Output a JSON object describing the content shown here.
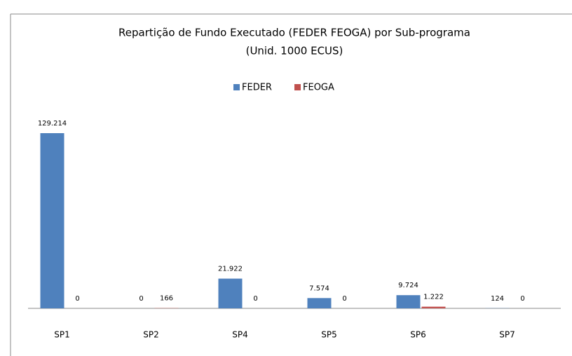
{
  "chart_data": {
    "type": "bar",
    "title": "Repartição de Fundo Executado (FEDER FEOGA) por Sub-programa",
    "subtitle": "(Unid. 1000 ECUS)",
    "categories": [
      "SP1",
      "SP2",
      "SP4",
      "SP5",
      "SP6",
      "SP7"
    ],
    "series": [
      {
        "name": "FEDER",
        "color": "#4f81bd",
        "values": [
          129214,
          0,
          21922,
          7574,
          9724,
          124
        ],
        "value_labels": [
          "129.214",
          "0",
          "21.922",
          "7.574",
          "9.724",
          "124"
        ]
      },
      {
        "name": "FEOGA",
        "color": "#c0504d",
        "values": [
          0,
          166,
          0,
          0,
          1222,
          0
        ],
        "value_labels": [
          "0",
          "166",
          "0",
          "0",
          "1.222",
          "0"
        ]
      }
    ],
    "legend": "top"
  }
}
